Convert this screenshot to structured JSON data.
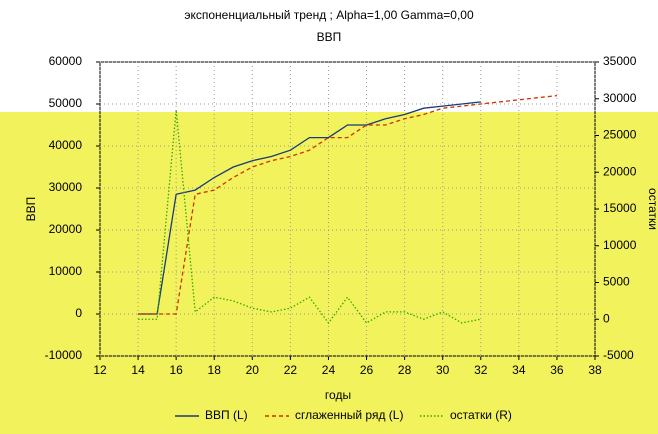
{
  "chart_data": {
    "type": "line",
    "title": "экспоненциальный тренд ; Alpha=1,00 Gamma=0,00",
    "subtitle": "ВВП",
    "x_label": "годы",
    "y_label": "ВВП",
    "y2_label": "остатки",
    "x": [
      14,
      15,
      16,
      17,
      18,
      19,
      20,
      21,
      22,
      23,
      24,
      25,
      26,
      27,
      28,
      29,
      30,
      31,
      32,
      33,
      34,
      35,
      36
    ],
    "series": [
      {
        "name": "ВВП (L)",
        "color": "#1a3a7a",
        "dash": "solid",
        "axis": "y",
        "values": [
          0,
          0,
          28500,
          29500,
          32500,
          35000,
          36500,
          37500,
          39000,
          42000,
          42000,
          45000,
          45000,
          46500,
          47500,
          49000,
          49500,
          50000,
          50500,
          null,
          null,
          null,
          null
        ]
      },
      {
        "name": "сглаженный ряд (L)",
        "color": "#cc3300",
        "dash": "dashed",
        "axis": "y",
        "values": [
          0,
          0,
          0,
          28500,
          29500,
          32500,
          35000,
          36500,
          37500,
          39000,
          42000,
          42000,
          45000,
          45000,
          46500,
          47500,
          49000,
          49500,
          50000,
          50500,
          51000,
          51500,
          52000
        ]
      },
      {
        "name": "остатки (R)",
        "color": "#33aa00",
        "dash": "dotted",
        "axis": "y2",
        "values": [
          0,
          0,
          28500,
          1000,
          3000,
          2500,
          1500,
          1000,
          1500,
          3000,
          -500,
          3000,
          -500,
          1000,
          1000,
          0,
          1000,
          -500,
          0,
          null,
          null,
          null,
          null
        ]
      }
    ],
    "xlim": [
      12,
      38
    ],
    "xticks": [
      12,
      14,
      16,
      18,
      20,
      22,
      24,
      26,
      28,
      30,
      32,
      34,
      36,
      38
    ],
    "ylim": [
      -10000,
      60000
    ],
    "yticks": [
      -10000,
      0,
      10000,
      20000,
      30000,
      40000,
      50000,
      60000
    ],
    "y2lim": [
      -5000,
      35000
    ],
    "y2ticks": [
      -5000,
      0,
      5000,
      10000,
      15000,
      20000,
      25000,
      30000,
      35000
    ],
    "grid": true
  }
}
